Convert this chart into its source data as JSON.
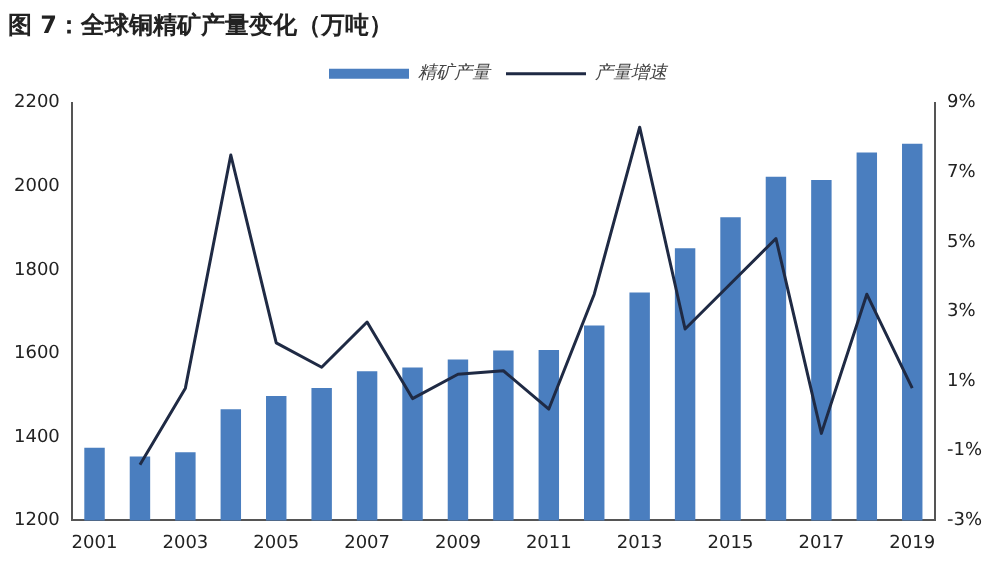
{
  "chart_data": {
    "type": "bar",
    "title": "图 7：全球铜精矿产量变化（万吨）",
    "categories": [
      "2001",
      null,
      "2003",
      null,
      "2005",
      null,
      "2007",
      null,
      "2009",
      null,
      "2011",
      null,
      "2013",
      null,
      "2015",
      null,
      "2017",
      null,
      "2019"
    ],
    "series": [
      {
        "name": "精矿产量",
        "color": "#4a7ebf",
        "values": [
          1374,
          1353,
          1363,
          1466,
          1498,
          1517,
          1557,
          1566,
          1585,
          1607,
          1608,
          1667,
          1746,
          1852,
          1926,
          2023,
          2015,
          2081,
          2102
        ]
      },
      {
        "name": "产量增速",
        "type": "line",
        "axis": "y2",
        "color": "#1f2a44",
        "values": [
          null,
          -1.4,
          0.8,
          7.5,
          2.1,
          1.4,
          2.7,
          0.5,
          1.2,
          1.3,
          0.2,
          3.5,
          8.3,
          2.5,
          3.8,
          5.1,
          -0.5,
          3.5,
          0.8
        ]
      }
    ],
    "ylim": [
      1200,
      2200
    ],
    "yticks": [
      1200,
      1400,
      1600,
      1800,
      2000,
      2200
    ],
    "y2lim": [
      -3,
      9
    ],
    "y2ticks": [
      {
        "value": -3,
        "label": "-3%"
      },
      {
        "value": -1,
        "label": "-1%"
      },
      {
        "value": 1,
        "label": "1%"
      },
      {
        "value": 3,
        "label": "3%"
      },
      {
        "value": 5,
        "label": "5%"
      },
      {
        "value": 7,
        "label": "7%"
      },
      {
        "value": 9,
        "label": "9%"
      }
    ],
    "legend": "top",
    "grid": false,
    "marker": "none"
  }
}
